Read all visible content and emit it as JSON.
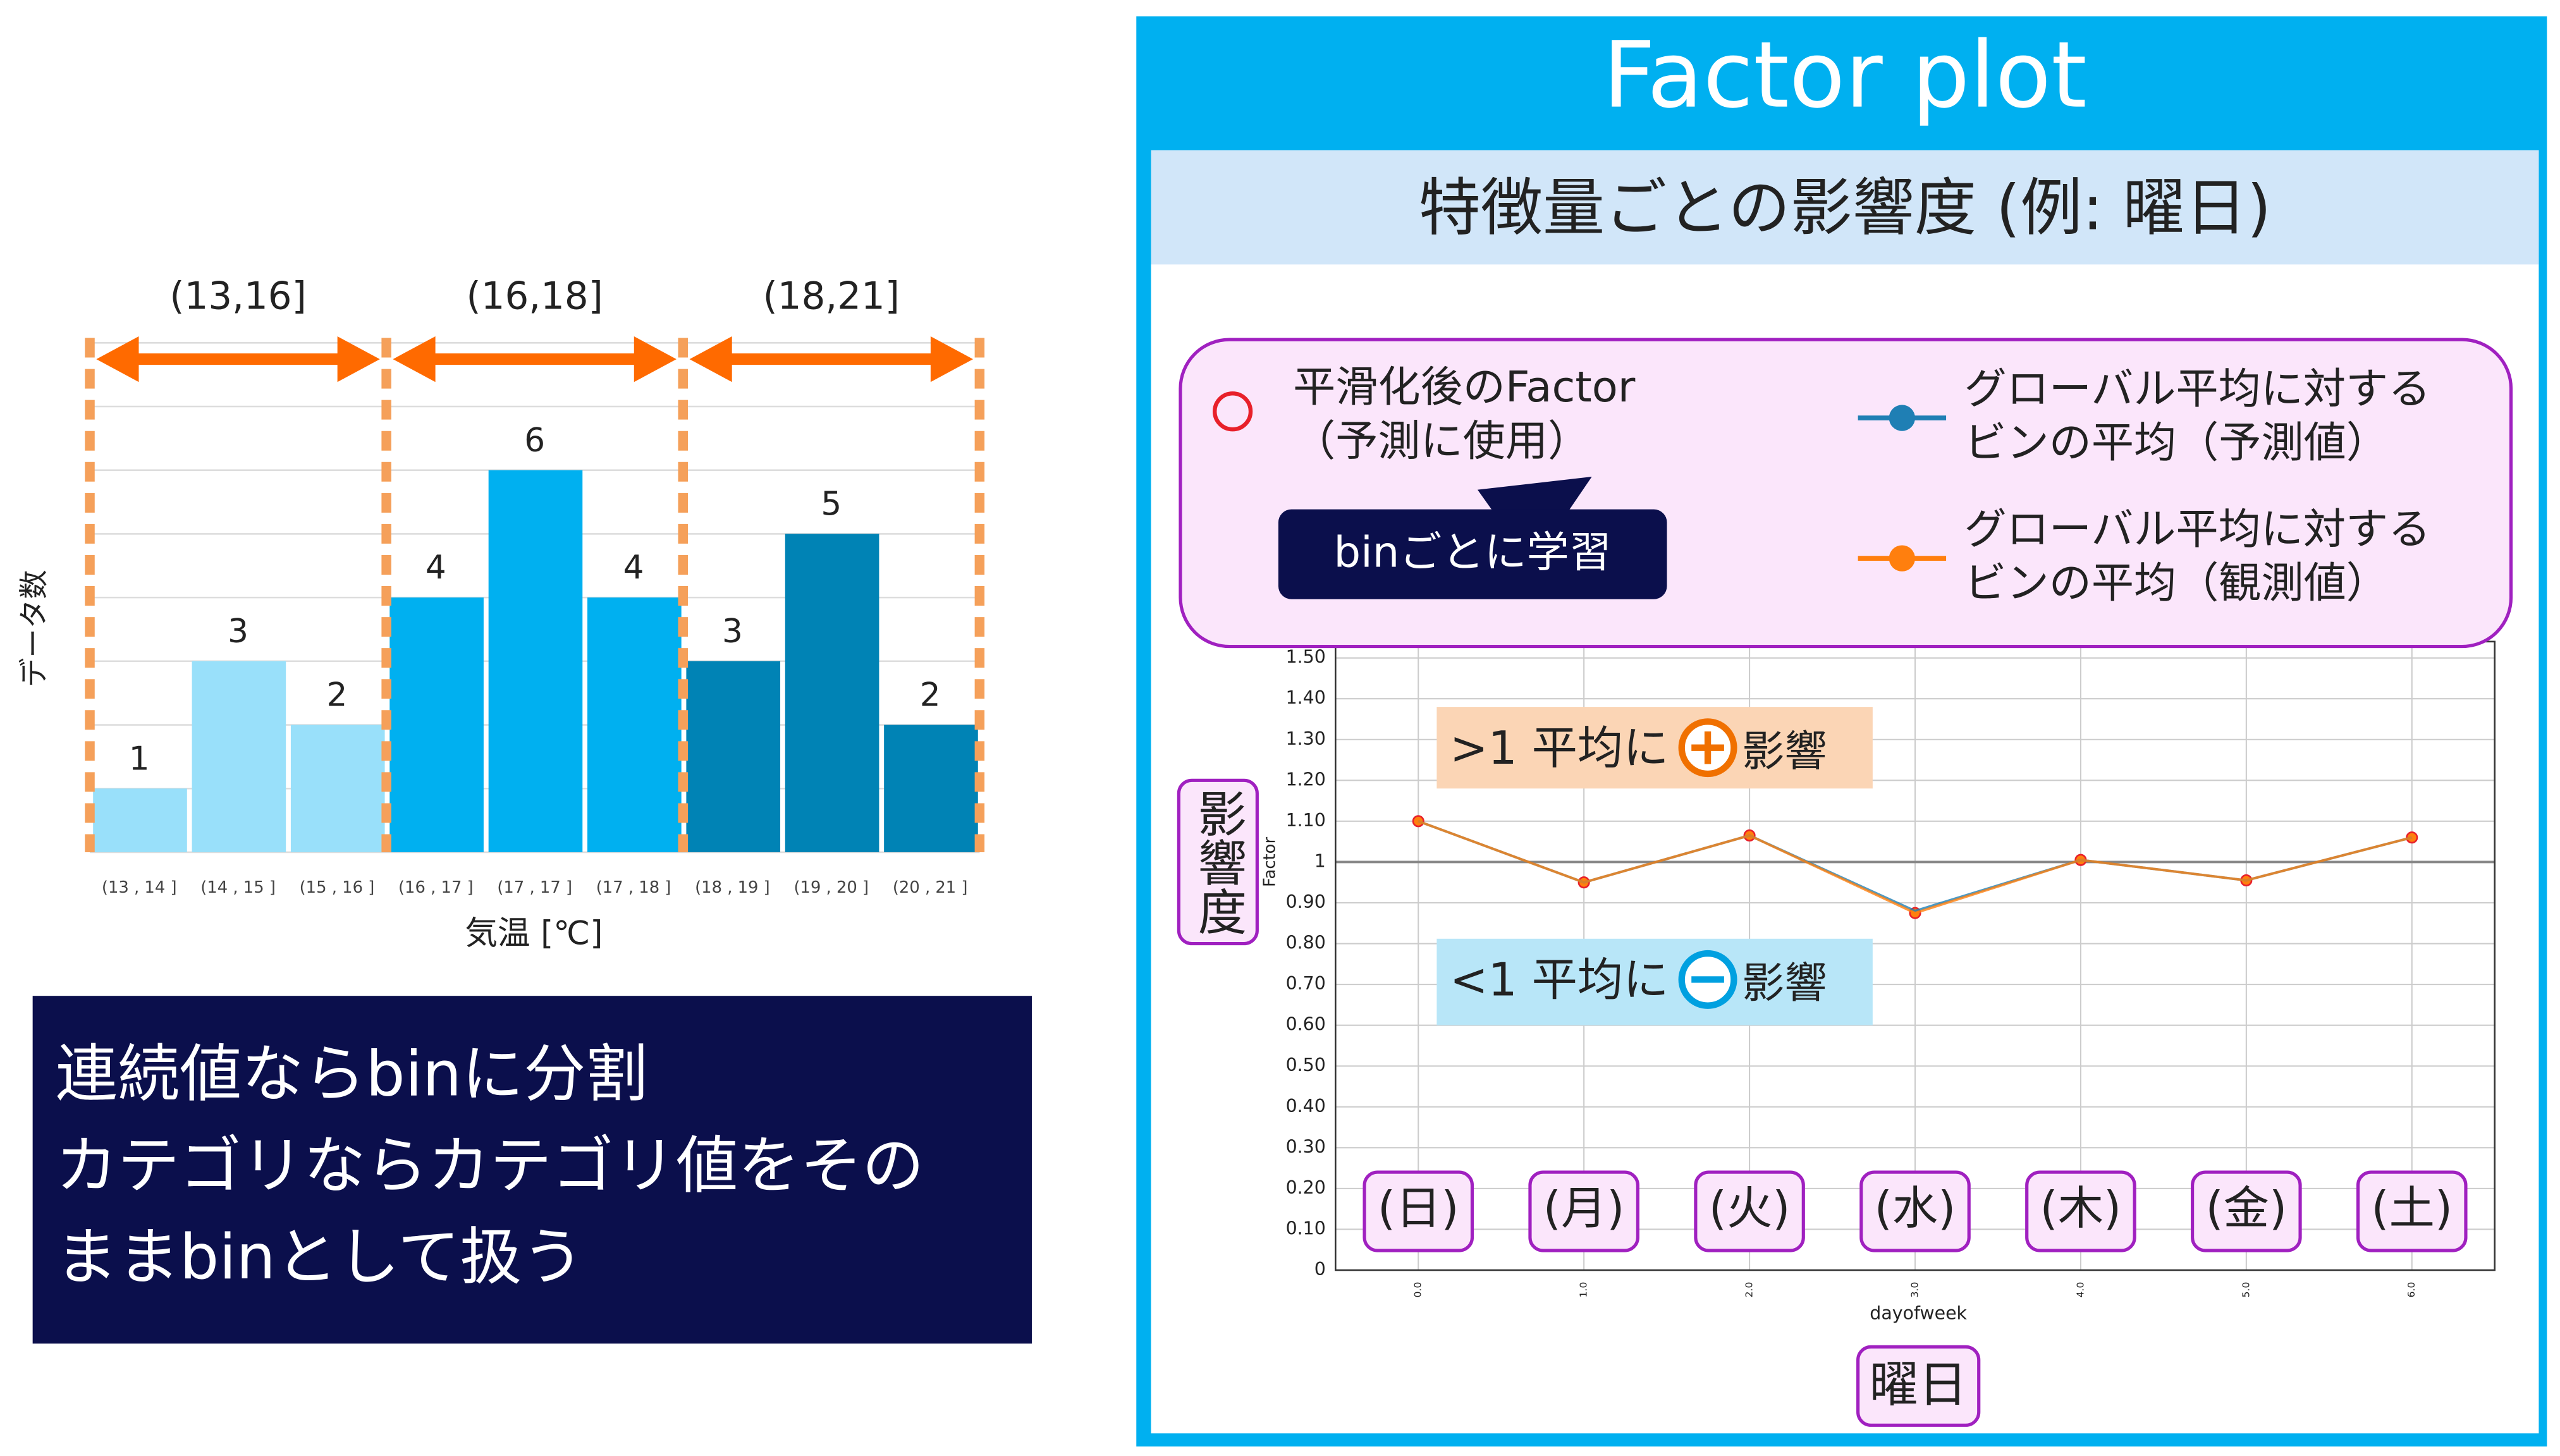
{
  "chart_data": [
    {
      "type": "bar",
      "y_label": "データ数",
      "x_label": "気温 [℃]",
      "categories": [
        "(13 , 14 ]",
        "(14 , 15 ]",
        "(15 , 16 ]",
        "(16 , 17 ]",
        "(17 , 17 ]",
        "(17 , 18 ]",
        "(18 , 19 ]",
        "(19 , 20 ]",
        "(20 , 21 ]"
      ],
      "values": [
        1,
        3,
        2,
        4,
        6,
        4,
        3,
        5,
        2
      ],
      "colors": [
        "#99e0fa",
        "#99e0fa",
        "#99e0fa",
        "#00b0f0",
        "#00b0f0",
        "#00b0f0",
        "#0083b5",
        "#0083b5",
        "#0083b5"
      ],
      "groups": [
        "(13,16]",
        "(16,18]",
        "(18,21]"
      ],
      "ylim": [
        0,
        8
      ],
      "yticks": [
        0,
        1,
        2,
        3,
        4,
        5,
        6,
        7,
        8
      ],
      "grid": true
    },
    {
      "type": "line",
      "x_label": "dayofweek",
      "y_label": "Factor",
      "x": [
        0,
        1,
        2,
        3,
        4,
        5,
        6
      ],
      "xlim": [
        -0.5,
        6.5
      ],
      "xticks": [
        {
          "value": 0,
          "label": "0.0"
        },
        {
          "value": 1,
          "label": "1.0"
        },
        {
          "value": 2,
          "label": "2.0"
        },
        {
          "value": 3,
          "label": "3.0"
        },
        {
          "value": 4,
          "label": "4.0"
        },
        {
          "value": 5,
          "label": "5.0"
        },
        {
          "value": 6,
          "label": "6.0"
        }
      ],
      "ylim": [
        0,
        1.54
      ],
      "yticks": [
        0,
        {
          "value": 0.1,
          "label": "0.10"
        },
        {
          "value": 0.2,
          "label": "0.20"
        },
        {
          "value": 0.3,
          "label": "0.30"
        },
        {
          "value": 0.4,
          "label": "0.40"
        },
        {
          "value": 0.5,
          "label": "0.50"
        },
        {
          "value": 0.6,
          "label": "0.60"
        },
        {
          "value": 0.7,
          "label": "0.70"
        },
        {
          "value": 0.8,
          "label": "0.80"
        },
        {
          "value": 0.9,
          "label": "0.90"
        },
        1,
        {
          "value": 1.1,
          "label": "1.10"
        },
        {
          "value": 1.2,
          "label": "1.20"
        },
        {
          "value": 1.3,
          "label": "1.30"
        },
        {
          "value": 1.4,
          "label": "1.40"
        },
        {
          "value": 1.5,
          "label": "1.50"
        }
      ],
      "reference_line": 1,
      "grid": true,
      "series": [
        {
          "name": "平滑化後のFactor（予測に使用）",
          "color": "#e8202a",
          "marker": "open-circle",
          "values": [
            1.1,
            0.95,
            1.065,
            0.875,
            1.005,
            0.955,
            1.06
          ]
        },
        {
          "name": "グローバル平均に対するビンの平均（予測値）",
          "color": "#1f7fb4",
          "values": [
            1.1,
            0.95,
            1.065,
            0.88,
            1.005,
            0.955,
            1.06
          ]
        },
        {
          "name": "グローバル平均に対するビンの平均（観測値）",
          "color": "#ff7f0e",
          "values": [
            1.1,
            0.95,
            1.065,
            0.875,
            1.005,
            0.955,
            1.06
          ]
        }
      ]
    }
  ],
  "left_note": [
    "連続値ならbinに分割",
    "カテゴリならカテゴリ値をそのままbinとして扱う"
  ],
  "panel": {
    "title": "Factor plot",
    "subtitle": "特徴量ごとの影響度 (例: 曜日)",
    "bubble": "binごとに学習",
    "annotations": [
      {
        "prefix": ">1 平均に",
        "suffix": "影響"
      },
      {
        "prefix": "<1 平均に",
        "suffix": "影響"
      }
    ],
    "y_caption": "影響度",
    "x_caption": "曜日",
    "day_labels": [
      "(日)",
      "(月)",
      "(火)",
      "(水)",
      "(木)",
      "(金)",
      "(土)"
    ]
  }
}
